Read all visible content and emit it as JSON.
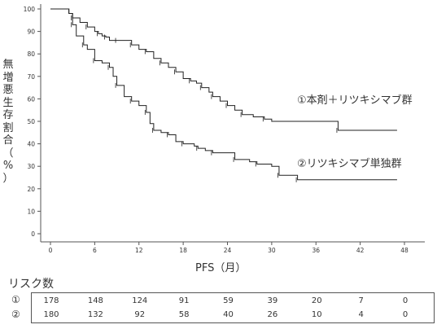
{
  "chart_data": {
    "type": "line",
    "title": "",
    "xlabel": "PFS（月）",
    "ylabel": "無増悪生存割合（%）",
    "xlim": [
      0,
      48
    ],
    "ylim": [
      0,
      100
    ],
    "xticks": [
      "0",
      "6",
      "12",
      "18",
      "24",
      "30",
      "36",
      "42",
      "48"
    ],
    "yticks": [
      "0",
      "10",
      "20",
      "30",
      "40",
      "50",
      "60",
      "70",
      "80",
      "90",
      "100"
    ],
    "grid": false,
    "series": [
      {
        "name": "①本剤＋リツキシマブ群",
        "x": [
          0,
          2.5,
          3,
          4,
          5,
          6,
          6.5,
          7,
          7.5,
          8,
          9,
          10,
          11,
          12,
          13,
          14,
          15,
          16,
          17,
          18,
          19,
          19.8,
          20.5,
          21.5,
          22,
          23,
          24,
          25,
          26,
          27.5,
          29,
          30,
          39,
          47
        ],
        "y": [
          100,
          98,
          96,
          94,
          92,
          90,
          89,
          88,
          87.5,
          86,
          86,
          86,
          84,
          82,
          81,
          78,
          76,
          74,
          72,
          69,
          68,
          67,
          65,
          63,
          61,
          59,
          57,
          55,
          53,
          52,
          51,
          50,
          46,
          46
        ]
      },
      {
        "name": "②リツキシマブ単独群",
        "x": [
          0,
          2.5,
          3,
          3.5,
          4.5,
          5,
          6,
          7,
          8,
          8.5,
          9,
          10,
          11,
          12,
          13,
          13.5,
          14,
          15,
          16,
          17,
          18,
          19.5,
          20,
          21,
          22,
          24,
          25,
          27,
          28,
          30,
          31,
          33,
          33.5,
          47
        ],
        "y": [
          100,
          98,
          93,
          88,
          84,
          82,
          77,
          76,
          74,
          70,
          66,
          61,
          59,
          57,
          54,
          49,
          46,
          45,
          44,
          41,
          40,
          39,
          38,
          37,
          36,
          36,
          33,
          32,
          31,
          30,
          26,
          26,
          24,
          24
        ]
      }
    ],
    "annotations": [
      "①本剤＋リツキシマブ群",
      "②リツキシマブ単独群"
    ],
    "risk_table": {
      "title": "リスク数",
      "times": [
        0,
        6,
        12,
        18,
        24,
        30,
        36,
        42,
        48
      ],
      "rows": [
        {
          "label": "①",
          "values": [
            "178",
            "148",
            "124",
            "91",
            "59",
            "39",
            "20",
            "7",
            "0"
          ]
        },
        {
          "label": "②",
          "values": [
            "180",
            "132",
            "92",
            "58",
            "40",
            "26",
            "10",
            "4",
            "0"
          ]
        }
      ]
    },
    "colors": {
      "line": "#222222",
      "axis": "#555555"
    }
  }
}
